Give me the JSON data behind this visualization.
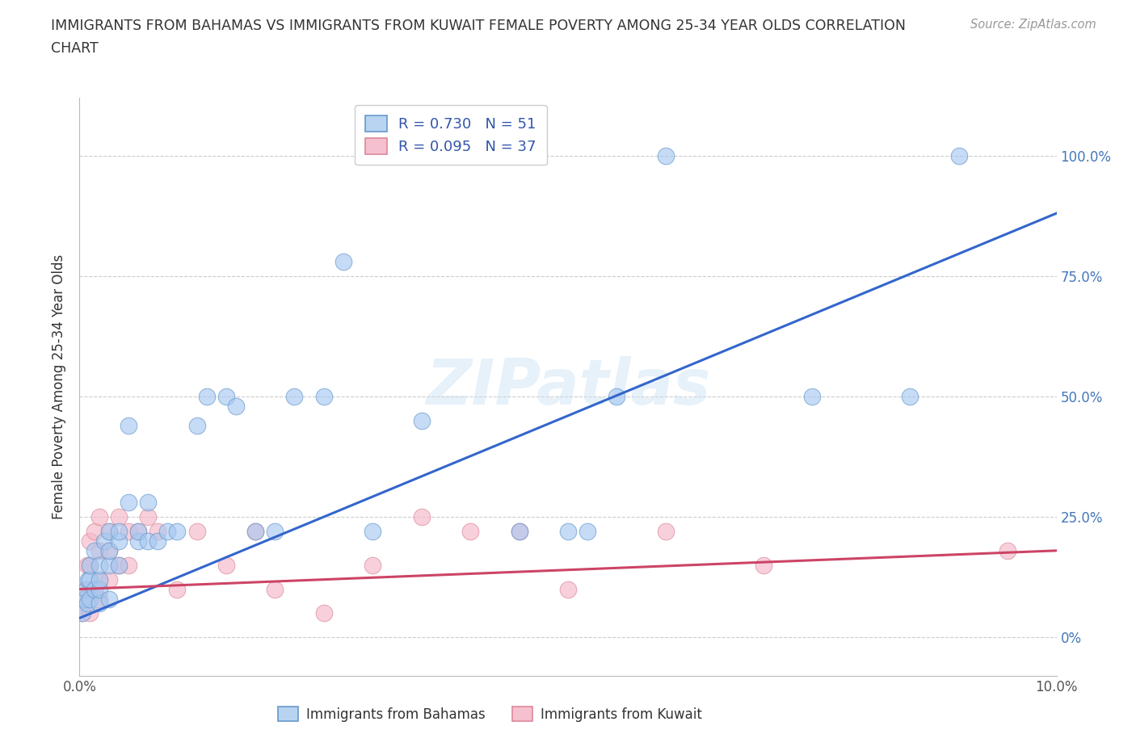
{
  "title_line1": "IMMIGRANTS FROM BAHAMAS VS IMMIGRANTS FROM KUWAIT FEMALE POVERTY AMONG 25-34 YEAR OLDS CORRELATION",
  "title_line2": "CHART",
  "source": "Source: ZipAtlas.com",
  "ylabel_label": "Female Poverty Among 25-34 Year Olds",
  "xmin": 0.0,
  "xmax": 0.1,
  "ymin": -0.08,
  "ymax": 1.12,
  "xticks": [
    0.0,
    0.02,
    0.04,
    0.06,
    0.08,
    0.1
  ],
  "xtick_labels": [
    "0.0%",
    "",
    "",
    "",
    "",
    "10.0%"
  ],
  "ytick_positions": [
    0.0,
    0.25,
    0.5,
    0.75,
    1.0
  ],
  "right_ytick_labels": [
    "0%",
    "25.0%",
    "50.0%",
    "75.0%",
    "100.0%"
  ],
  "bahamas_R": 0.73,
  "bahamas_N": 51,
  "kuwait_R": 0.095,
  "kuwait_N": 37,
  "bahamas_color": "#a8c8f0",
  "kuwait_color": "#f5b8c8",
  "bahamas_edge_color": "#6699cc",
  "kuwait_edge_color": "#dd8899",
  "bahamas_line_color": "#3366cc",
  "kuwait_line_color": "#cc4466",
  "bahamas_x": [
    0.0003,
    0.0005,
    0.0007,
    0.0008,
    0.0009,
    0.001,
    0.001,
    0.001,
    0.0015,
    0.0015,
    0.002,
    0.002,
    0.002,
    0.002,
    0.0025,
    0.003,
    0.003,
    0.003,
    0.003,
    0.004,
    0.004,
    0.004,
    0.005,
    0.005,
    0.006,
    0.006,
    0.007,
    0.007,
    0.008,
    0.009,
    0.01,
    0.012,
    0.013,
    0.015,
    0.016,
    0.018,
    0.02,
    0.022,
    0.025,
    0.027,
    0.03,
    0.035,
    0.04,
    0.045,
    0.05,
    0.052,
    0.055,
    0.06,
    0.075,
    0.085,
    0.09
  ],
  "bahamas_y": [
    0.05,
    0.08,
    0.1,
    0.07,
    0.12,
    0.08,
    0.12,
    0.15,
    0.1,
    0.18,
    0.07,
    0.1,
    0.12,
    0.15,
    0.2,
    0.08,
    0.15,
    0.18,
    0.22,
    0.15,
    0.2,
    0.22,
    0.44,
    0.28,
    0.2,
    0.22,
    0.28,
    0.2,
    0.2,
    0.22,
    0.22,
    0.44,
    0.5,
    0.5,
    0.48,
    0.22,
    0.22,
    0.5,
    0.5,
    0.78,
    0.22,
    0.45,
    1.0,
    0.22,
    0.22,
    0.22,
    0.5,
    1.0,
    0.5,
    0.5,
    1.0
  ],
  "kuwait_x": [
    0.0002,
    0.0004,
    0.0006,
    0.0008,
    0.001,
    0.001,
    0.001,
    0.001,
    0.0015,
    0.002,
    0.002,
    0.002,
    0.002,
    0.003,
    0.003,
    0.003,
    0.004,
    0.004,
    0.005,
    0.005,
    0.006,
    0.007,
    0.008,
    0.01,
    0.012,
    0.015,
    0.018,
    0.02,
    0.025,
    0.03,
    0.035,
    0.04,
    0.045,
    0.05,
    0.06,
    0.07,
    0.095
  ],
  "kuwait_y": [
    0.05,
    0.08,
    0.1,
    0.15,
    0.05,
    0.1,
    0.15,
    0.2,
    0.22,
    0.08,
    0.12,
    0.18,
    0.25,
    0.12,
    0.18,
    0.22,
    0.15,
    0.25,
    0.15,
    0.22,
    0.22,
    0.25,
    0.22,
    0.1,
    0.22,
    0.15,
    0.22,
    0.1,
    0.05,
    0.15,
    0.25,
    0.22,
    0.22,
    0.1,
    0.22,
    0.15,
    0.18
  ],
  "bahamas_line_x0": 0.0,
  "bahamas_line_y0": 0.04,
  "bahamas_line_x1": 0.1,
  "bahamas_line_y1": 0.88,
  "kuwait_line_x0": 0.0,
  "kuwait_line_y0": 0.1,
  "kuwait_line_x1": 0.1,
  "kuwait_line_y1": 0.18,
  "watermark": "ZIPatlas",
  "legend_box_color_bahamas": "#b8d4f0",
  "legend_box_color_kuwait": "#f5c0d0",
  "legend_border_bahamas": "#6699cc",
  "legend_border_kuwait": "#dd8899",
  "legend_text_color": "#3355aa"
}
